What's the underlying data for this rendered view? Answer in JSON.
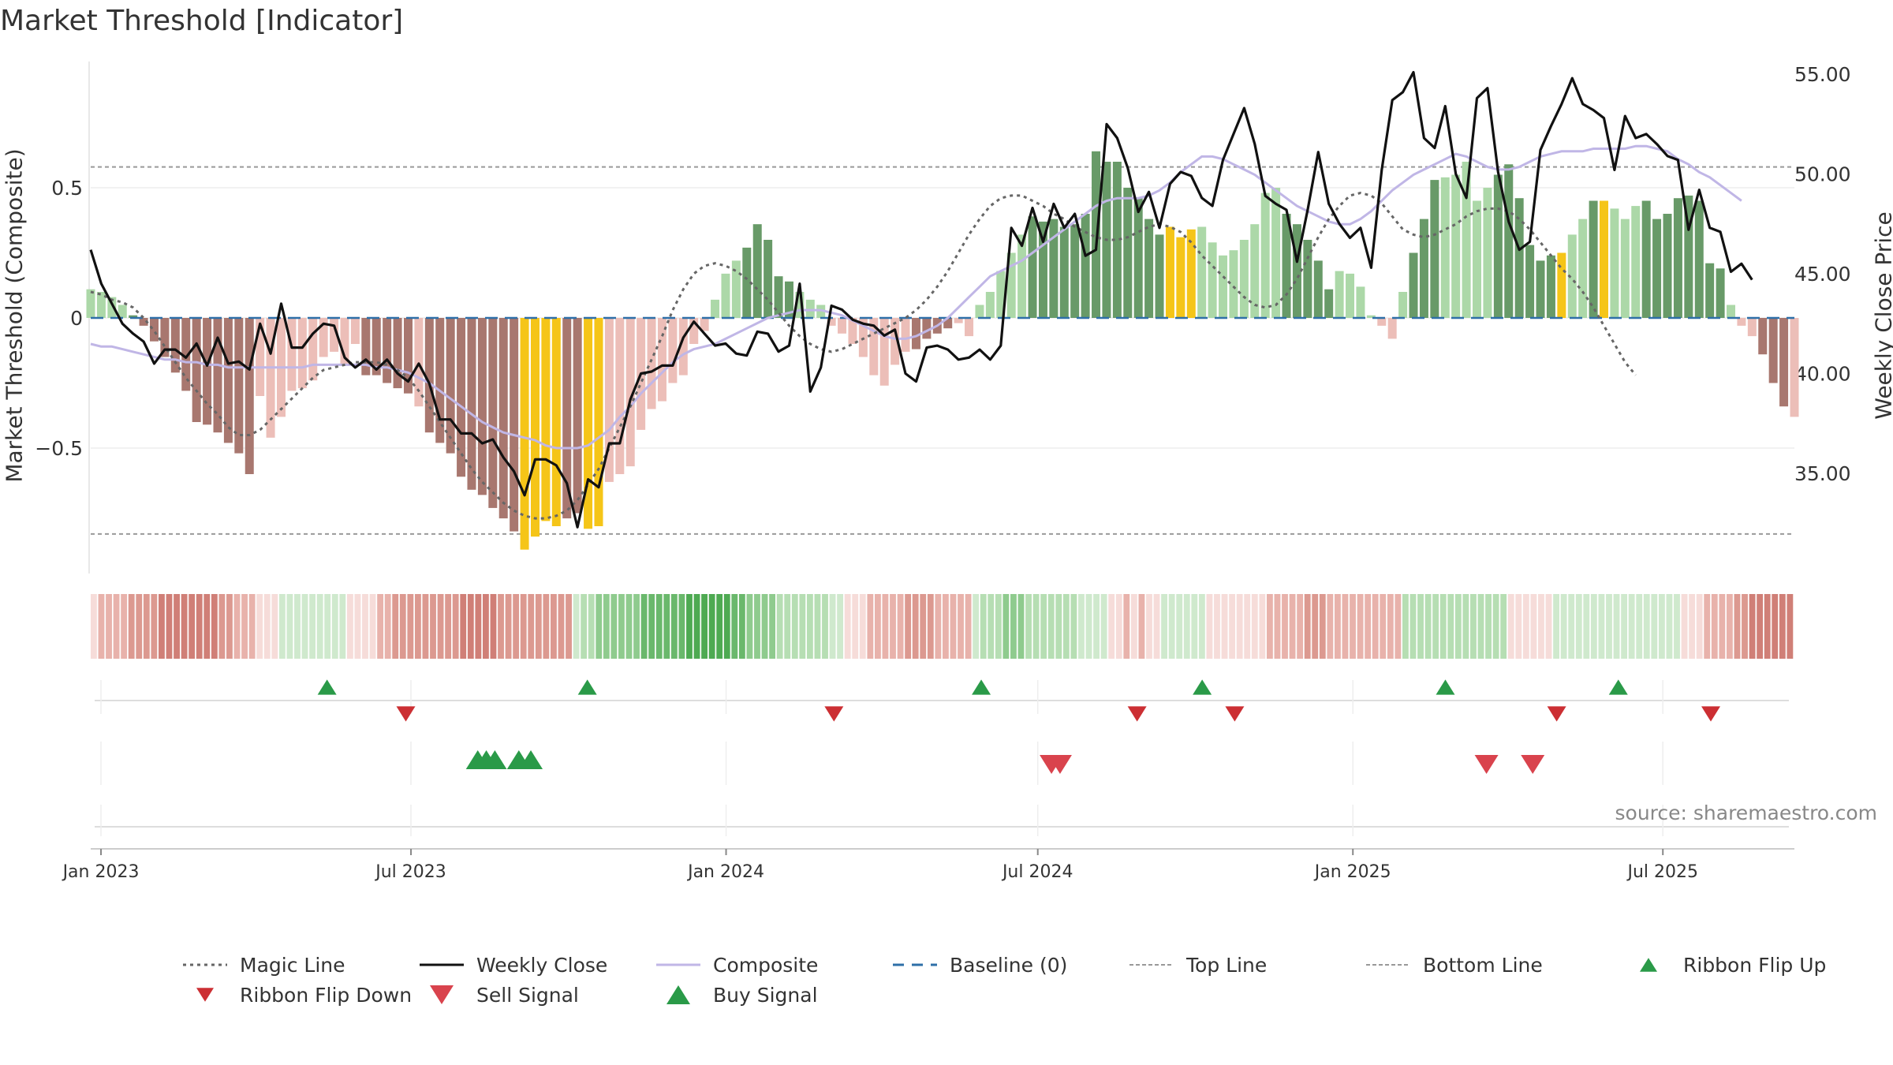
{
  "chart_data": {
    "type": "bar",
    "title": "Market Threshold [Indicator]",
    "ylabel": "Market Threshold (Composite)",
    "ylabel_right": "Weekly Close Price",
    "source": "source: sharemaestro.com",
    "ylim": [
      -0.97,
      0.5
    ],
    "ylim_right": [
      31,
      56
    ],
    "y_ticks": [
      {
        "value": 0.5,
        "label": "0.5"
      },
      {
        "value": 0,
        "label": "0"
      },
      {
        "value": -0.5,
        "label": "−0.5"
      }
    ],
    "y_ticks_right": [
      {
        "value": 55,
        "label": "55.00"
      },
      {
        "value": 50,
        "label": "50.00"
      },
      {
        "value": 45,
        "label": "45.00"
      },
      {
        "value": 40,
        "label": "40.00"
      },
      {
        "value": 35,
        "label": "35.00"
      }
    ],
    "x_start": "2022-12-26",
    "x_ticks": [
      {
        "date": "2023-01-01",
        "label": "Jan 2023"
      },
      {
        "date": "2023-07-01",
        "label": "Jul 2023"
      },
      {
        "date": "2024-01-01",
        "label": "Jan 2024"
      },
      {
        "date": "2024-07-01",
        "label": "Jul 2024"
      },
      {
        "date": "2025-01-01",
        "label": "Jan 2025"
      },
      {
        "date": "2025-07-01",
        "label": "Jul 2025"
      }
    ],
    "top_line": 0.58,
    "bottom_line": -0.83,
    "composite": [
      0.11,
      0.1,
      0.08,
      0.05,
      0.01,
      -0.03,
      -0.09,
      -0.15,
      -0.21,
      -0.28,
      -0.4,
      -0.41,
      -0.44,
      -0.48,
      -0.52,
      -0.6,
      -0.3,
      -0.46,
      -0.38,
      -0.28,
      -0.27,
      -0.24,
      -0.15,
      -0.13,
      -0.18,
      -0.1,
      -0.22,
      -0.22,
      -0.25,
      -0.27,
      -0.29,
      -0.34,
      -0.44,
      -0.48,
      -0.52,
      -0.61,
      -0.66,
      -0.68,
      -0.73,
      -0.77,
      -0.82,
      -0.89,
      -0.84,
      -0.78,
      -0.8,
      -0.77,
      -0.75,
      -0.81,
      -0.8,
      -0.63,
      -0.6,
      -0.57,
      -0.43,
      -0.35,
      -0.32,
      -0.25,
      -0.22,
      -0.1,
      -0.05,
      0.07,
      0.17,
      0.22,
      0.27,
      0.36,
      0.3,
      0.16,
      0.14,
      0.1,
      0.07,
      0.05,
      -0.03,
      -0.06,
      -0.1,
      -0.15,
      -0.22,
      -0.26,
      -0.18,
      -0.13,
      -0.12,
      -0.08,
      -0.06,
      -0.04,
      -0.02,
      -0.07,
      0.05,
      0.1,
      0.18,
      0.25,
      0.32,
      0.39,
      0.37,
      0.38,
      0.35,
      0.36,
      0.4,
      0.64,
      0.6,
      0.6,
      0.5,
      0.46,
      0.38,
      0.32,
      0.35,
      0.31,
      0.34,
      0.35,
      0.29,
      0.24,
      0.26,
      0.3,
      0.36,
      0.48,
      0.5,
      0.4,
      0.36,
      0.3,
      0.22,
      0.11,
      0.18,
      0.17,
      0.12,
      0.01,
      -0.03,
      -0.08,
      0.1,
      0.25,
      0.38,
      0.53,
      0.54,
      0.55,
      0.6,
      0.45,
      0.5,
      0.55,
      0.59,
      0.46,
      0.28,
      0.22,
      0.24,
      0.25,
      0.32,
      0.38,
      0.45,
      0.45,
      0.42,
      0.38,
      0.43,
      0.45,
      0.38,
      0.4,
      0.46,
      0.47,
      0.45,
      0.21,
      0.19,
      0.05,
      -0.03,
      -0.07,
      -0.14,
      -0.25,
      -0.34,
      -0.38
    ],
    "bar_colors": "LLLLDDDDDDDDDDDDLLLLLLLLLLDDDDDLDDDDDDDDDYYYYDDYYLLLLLLLLLLLLLDDDDDLLLLLLLLLLLDDDDLLLLLLLDDDDDDDDDDDDDYYYLLLLLLLLDDDDDLLLLLLLDDDLLLLLDDDDDDYLLDYLLLDDDDDDDDLLLDDDLLLLLDDDDDDDD",
    "magic_line": [
      0.1,
      0.09,
      0.07,
      0.06,
      0.04,
      0.0,
      -0.05,
      -0.11,
      -0.17,
      -0.23,
      -0.28,
      -0.33,
      -0.37,
      -0.42,
      -0.45,
      -0.45,
      -0.43,
      -0.39,
      -0.35,
      -0.31,
      -0.27,
      -0.23,
      -0.2,
      -0.19,
      -0.18,
      -0.17,
      -0.17,
      -0.17,
      -0.18,
      -0.2,
      -0.23,
      -0.28,
      -0.34,
      -0.4,
      -0.46,
      -0.52,
      -0.58,
      -0.63,
      -0.67,
      -0.71,
      -0.74,
      -0.76,
      -0.77,
      -0.77,
      -0.76,
      -0.74,
      -0.7,
      -0.64,
      -0.58,
      -0.5,
      -0.42,
      -0.34,
      -0.25,
      -0.16,
      -0.07,
      0.03,
      0.11,
      0.17,
      0.2,
      0.21,
      0.2,
      0.18,
      0.15,
      0.11,
      0.07,
      0.02,
      -0.03,
      -0.07,
      -0.1,
      -0.12,
      -0.13,
      -0.12,
      -0.1,
      -0.08,
      -0.06,
      -0.04,
      -0.02,
      0.0,
      0.03,
      0.07,
      0.12,
      0.18,
      0.25,
      0.32,
      0.38,
      0.43,
      0.46,
      0.47,
      0.47,
      0.45,
      0.43,
      0.4,
      0.38,
      0.35,
      0.33,
      0.31,
      0.3,
      0.3,
      0.31,
      0.33,
      0.35,
      0.36,
      0.35,
      0.33,
      0.29,
      0.24,
      0.2,
      0.16,
      0.12,
      0.08,
      0.05,
      0.04,
      0.05,
      0.09,
      0.15,
      0.23,
      0.31,
      0.38,
      0.43,
      0.47,
      0.48,
      0.47,
      0.44,
      0.39,
      0.34,
      0.32,
      0.31,
      0.32,
      0.34,
      0.36,
      0.39,
      0.41,
      0.42,
      0.42,
      0.41,
      0.38,
      0.34,
      0.29,
      0.24,
      0.19,
      0.15,
      0.1,
      0.04,
      -0.03,
      -0.1,
      -0.17,
      -0.22
    ],
    "composite_line": [
      -0.1,
      -0.11,
      -0.11,
      -0.12,
      -0.13,
      -0.14,
      -0.15,
      -0.16,
      -0.16,
      -0.17,
      -0.17,
      -0.18,
      -0.18,
      -0.19,
      -0.19,
      -0.19,
      -0.19,
      -0.19,
      -0.19,
      -0.19,
      -0.19,
      -0.18,
      -0.18,
      -0.18,
      -0.18,
      -0.18,
      -0.18,
      -0.19,
      -0.19,
      -0.2,
      -0.21,
      -0.23,
      -0.25,
      -0.28,
      -0.31,
      -0.34,
      -0.37,
      -0.4,
      -0.42,
      -0.44,
      -0.45,
      -0.46,
      -0.47,
      -0.49,
      -0.5,
      -0.5,
      -0.5,
      -0.49,
      -0.46,
      -0.43,
      -0.38,
      -0.34,
      -0.29,
      -0.25,
      -0.21,
      -0.17,
      -0.14,
      -0.12,
      -0.11,
      -0.1,
      -0.08,
      -0.06,
      -0.04,
      -0.02,
      0.0,
      0.01,
      0.02,
      0.03,
      0.03,
      0.03,
      0.02,
      0.01,
      -0.01,
      -0.03,
      -0.05,
      -0.07,
      -0.08,
      -0.08,
      -0.07,
      -0.05,
      -0.03,
      0.0,
      0.04,
      0.08,
      0.12,
      0.16,
      0.18,
      0.2,
      0.22,
      0.25,
      0.28,
      0.31,
      0.34,
      0.37,
      0.4,
      0.43,
      0.45,
      0.46,
      0.46,
      0.46,
      0.47,
      0.49,
      0.52,
      0.56,
      0.59,
      0.62,
      0.62,
      0.61,
      0.59,
      0.57,
      0.55,
      0.52,
      0.49,
      0.46,
      0.43,
      0.41,
      0.39,
      0.37,
      0.36,
      0.36,
      0.38,
      0.41,
      0.45,
      0.49,
      0.52,
      0.55,
      0.57,
      0.59,
      0.61,
      0.63,
      0.62,
      0.6,
      0.58,
      0.57,
      0.57,
      0.58,
      0.6,
      0.62,
      0.63,
      0.64,
      0.64,
      0.64,
      0.65,
      0.65,
      0.65,
      0.65,
      0.66,
      0.66,
      0.65,
      0.64,
      0.61,
      0.59,
      0.56,
      0.54,
      0.51,
      0.48,
      0.45
    ],
    "close": [
      46.2,
      44.5,
      43.5,
      42.5,
      42,
      41.6,
      40.5,
      41.2,
      41.2,
      40.8,
      41.5,
      40.4,
      41.8,
      40.5,
      40.6,
      40.2,
      42.5,
      41,
      43.5,
      41.3,
      41.3,
      42,
      42.5,
      42.4,
      40.8,
      40.3,
      40.7,
      40.2,
      40.7,
      40,
      39.6,
      40.5,
      39.5,
      37.7,
      37.7,
      37,
      37,
      36.5,
      36.7,
      35.8,
      35.1,
      33.9,
      35.7,
      35.7,
      35.4,
      34.5,
      32.3,
      34.7,
      34.3,
      36.5,
      36.5,
      38.7,
      40,
      40.1,
      40.4,
      40.4,
      41.8,
      42.6,
      42,
      41.4,
      41.5,
      41,
      40.9,
      42.1,
      42,
      41.1,
      41.4,
      44.5,
      39.1,
      40.3,
      43.4,
      43.2,
      42.7,
      42.5,
      42.4,
      41.9,
      42.2,
      40,
      39.6,
      41.3,
      41.4,
      41.2,
      40.7,
      40.8,
      41.2,
      40.7,
      41.4,
      47.3,
      46.4,
      48.3,
      46.6,
      48.5,
      47.3,
      48,
      45.9,
      46.2,
      52.5,
      51.8,
      50.3,
      48.1,
      49.1,
      47.3,
      49.5,
      50.1,
      49.9,
      48.8,
      48.4,
      50.7,
      52,
      53.3,
      51.5,
      48.9,
      48.5,
      48.2,
      45.6,
      48.2,
      51.1,
      48.5,
      47.5,
      46.8,
      47.3,
      45.3,
      50.2,
      53.7,
      54.1,
      55.1,
      51.8,
      51.3,
      53.4,
      50,
      48.8,
      53.8,
      54.3,
      50.1,
      47.6,
      46.2,
      46.6,
      51.2,
      52.4,
      53.5,
      54.8,
      53.5,
      53.2,
      52.8,
      50.2,
      52.9,
      51.8,
      52,
      51.5,
      50.9,
      50.7,
      47.2,
      49.2,
      47.3,
      47.1,
      45.1,
      45.5,
      44.7
    ],
    "ribbon": [
      -1,
      -2,
      -2,
      -2,
      -2,
      -3,
      -3,
      -3,
      -3,
      -4,
      -4,
      -4,
      -4,
      -4,
      -4,
      -4,
      -4,
      -3,
      -3,
      -2,
      -2,
      -2,
      -1,
      -1,
      -1,
      1,
      1,
      1,
      1,
      1,
      1,
      1,
      1,
      1,
      -1,
      -1,
      -1,
      -1,
      -2,
      -2,
      -3,
      -3,
      -3,
      -3,
      -3,
      -3,
      -3,
      -3,
      -3,
      -4,
      -4,
      -4,
      -4,
      -4,
      -3,
      -3,
      -3,
      -3,
      -3,
      -3,
      -3,
      -3,
      -3,
      -3,
      1,
      2,
      2,
      3,
      3,
      3,
      3,
      3,
      3,
      4,
      4,
      4,
      4,
      4,
      4,
      5,
      5,
      5,
      5,
      5,
      5,
      4,
      4,
      3,
      3,
      3,
      3,
      2,
      2,
      2,
      2,
      2,
      2,
      2,
      1,
      1,
      -1,
      -1,
      -1,
      -2,
      -2,
      -2,
      -2,
      -2,
      -3,
      -3,
      -3,
      -3,
      -2,
      -2,
      -2,
      -2,
      -2,
      1,
      2,
      2,
      2,
      3,
      3,
      3,
      2,
      2,
      2,
      2,
      2,
      2,
      2,
      1,
      1,
      1,
      1,
      -1,
      -1,
      -2,
      -1,
      -2,
      -1,
      -1,
      1,
      1,
      1,
      1,
      1,
      1,
      -1,
      -1,
      -1,
      -1,
      -1,
      -1,
      -1,
      -1,
      -2,
      -2,
      -2,
      -2,
      -2,
      -3,
      -3,
      -3,
      -2,
      -2,
      -2,
      -2,
      -2,
      -2,
      -2,
      -2,
      -2,
      -2,
      2,
      2,
      2,
      2,
      2,
      2,
      2,
      2,
      2,
      2,
      2,
      2,
      2,
      2,
      -1,
      -1,
      -1,
      -1,
      -1,
      -1,
      1,
      1,
      1,
      1,
      1,
      1,
      1,
      1,
      1,
      1,
      1,
      1,
      1,
      1,
      1,
      1,
      1,
      -1,
      -1,
      -1,
      -2,
      -2,
      -2,
      -2,
      -3,
      -3,
      -4,
      -4,
      -4,
      -4,
      -4,
      -4
    ],
    "ribbon_flip_up": [
      "2023-05-13",
      "2023-10-12",
      "2024-05-29",
      "2024-10-05",
      "2025-02-24",
      "2025-06-05"
    ],
    "ribbon_flip_down": [
      "2023-06-28",
      "2024-03-04",
      "2024-08-28",
      "2024-10-24",
      "2025-04-30",
      "2025-07-29"
    ],
    "buy_signal": [
      "2023-08-09",
      "2023-08-14",
      "2023-08-19",
      "2023-09-02",
      "2023-09-09"
    ],
    "sell_signal": [
      "2024-07-09",
      "2024-07-14",
      "2025-03-20",
      "2025-04-16"
    ],
    "legend": [
      {
        "label": "Magic Line",
        "kind": "dotted",
        "color": "#666666"
      },
      {
        "label": "Weekly Close",
        "kind": "solid",
        "color": "#111111"
      },
      {
        "label": "Composite",
        "kind": "solid",
        "color": "#c0b6e6"
      },
      {
        "label": "Baseline (0)",
        "kind": "dashed",
        "color": "#2e6fa8"
      },
      {
        "label": "Top Line",
        "kind": "finedash",
        "color": "#999999"
      },
      {
        "label": "Bottom Line",
        "kind": "finedash",
        "color": "#999999"
      },
      {
        "label": "Ribbon Flip Up",
        "kind": "tri-up-small",
        "color": "#2a9a48"
      },
      {
        "label": "Ribbon Flip Down",
        "kind": "tri-down-small",
        "color": "#cc2f33"
      },
      {
        "label": "Sell Signal",
        "kind": "tri-down",
        "color": "#d9434d"
      },
      {
        "label": "Buy Signal",
        "kind": "tri-up",
        "color": "#2a9a48"
      }
    ],
    "colors": {
      "bar_dark_red": "#a8776f",
      "bar_light_red": "#ecbeb8",
      "bar_dark_green": "#689a68",
      "bar_light_green": "#acd8a8",
      "bar_gold": "#f5c518"
    },
    "legend_placement": "bottom",
    "grid": true
  }
}
